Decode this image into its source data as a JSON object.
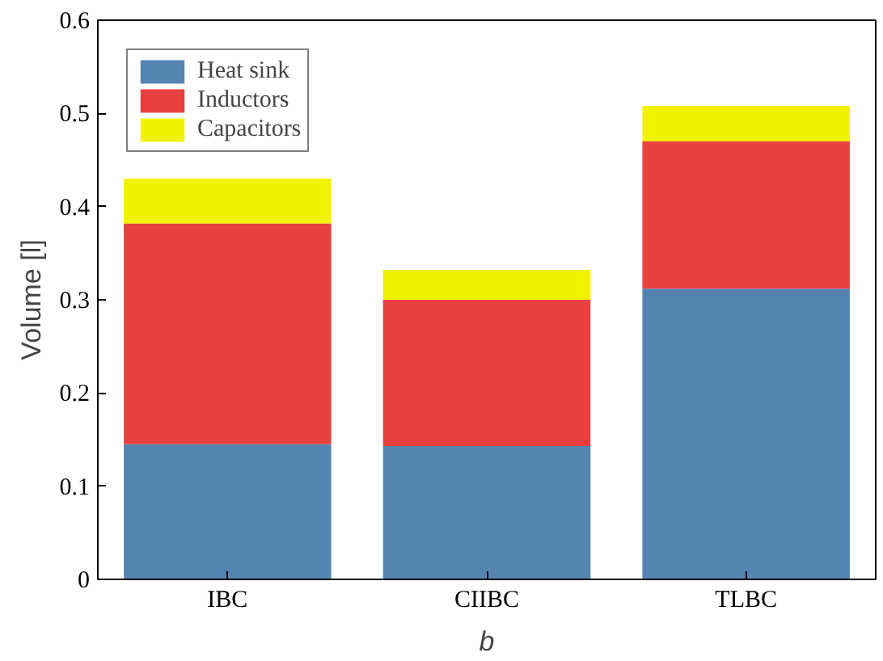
{
  "chart_data": {
    "type": "bar",
    "stacked": true,
    "xlabel": "b",
    "ylabel": "Volume [l]",
    "categories": [
      "IBC",
      "CIIBC",
      "TLBC"
    ],
    "series": [
      {
        "name": "Heat sink",
        "color": "#5584b1",
        "values": [
          0.145,
          0.143,
          0.312
        ]
      },
      {
        "name": "Inductors",
        "color": "#e8403f",
        "values": [
          0.237,
          0.157,
          0.158
        ]
      },
      {
        "name": "Capacitors",
        "color": "#f2f200",
        "values": [
          0.048,
          0.032,
          0.038
        ]
      }
    ],
    "ylim": [
      0,
      0.6
    ],
    "yticks": [
      0,
      0.1,
      0.2,
      0.3,
      0.4,
      0.5,
      0.6
    ],
    "grid": false,
    "legend": "top left"
  }
}
